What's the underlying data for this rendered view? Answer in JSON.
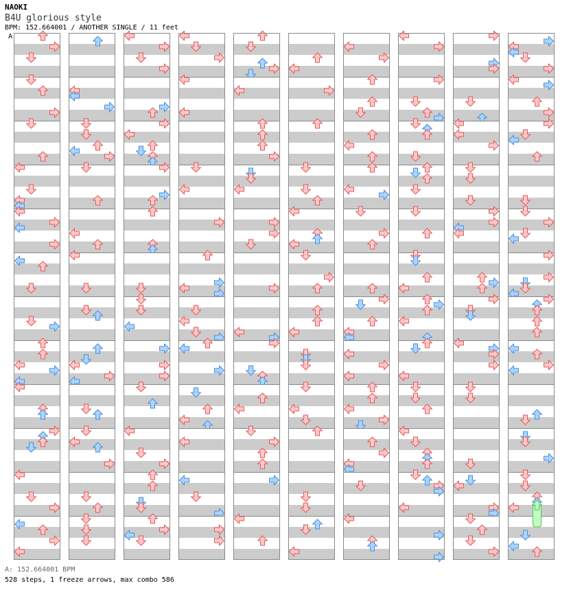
{
  "header": {
    "artist": "NAOKI",
    "title": "B4U glorious style",
    "info": "BPM: 152.664001 / ANOTHER SINGLE / 11 feet",
    "marker": "A"
  },
  "footer": {
    "bpm_line": "A: 152.664001 BPM",
    "stats_line": "528 steps, 1 freeze arrows, max combo 586"
  },
  "chart_data": {
    "type": "step-chart",
    "columns": 10,
    "measures_per_column": 12,
    "lanes": [
      "left",
      "down",
      "up",
      "right"
    ],
    "rows_per_measure": 8,
    "colors": {
      "quarter": "#ffc8c8",
      "quarter_stroke": "#e05a5a",
      "eighth": "#aad4ff",
      "eighth_stroke": "#4a8fd8",
      "freeze": "#bfffbf",
      "freeze_stroke": "#55bb55",
      "stripe": "#cccccc",
      "grid": "#888888"
    },
    "freeze": {
      "column": 9,
      "measure": 10,
      "lane": "up",
      "start_row": 6,
      "end_row": 10
    },
    "seed": 586
  }
}
